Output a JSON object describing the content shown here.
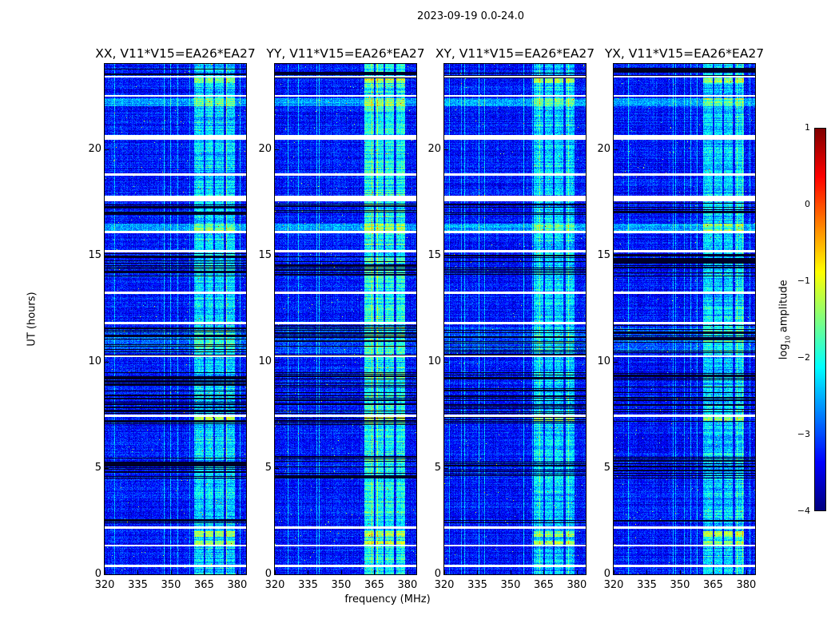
{
  "suptitle": "2023-09-19 0.0-24.0",
  "chart_data": {
    "type": "heatmap",
    "xlabel": "frequency (MHz)",
    "ylabel": "UT (hours)",
    "xlim": [
      320,
      384
    ],
    "ylim": [
      0,
      24
    ],
    "xticks": [
      "320",
      "335",
      "350",
      "365",
      "380"
    ],
    "xtick_values": [
      320,
      335,
      350,
      365,
      380
    ],
    "yticks": [
      "0",
      "5",
      "10",
      "15",
      "20"
    ],
    "ytick_values": [
      0,
      5,
      10,
      15,
      20
    ],
    "panels": [
      {
        "title": "XX, V11*V15=EA26*EA27",
        "band_boost": 1.1
      },
      {
        "title": "YY, V11*V15=EA26*EA27",
        "band_boost": 1.35
      },
      {
        "title": "XY, V11*V15=EA26*EA27",
        "band_boost": 1.05
      },
      {
        "title": "YX, V11*V15=EA26*EA27",
        "band_boost": 1.1
      }
    ],
    "background_log_amplitude": -3.3,
    "bright_bands_mhz": [
      [
        360.5,
        365
      ],
      [
        365.5,
        369
      ],
      [
        370,
        374
      ],
      [
        375,
        379
      ]
    ],
    "flagged_hours_white": [
      [
        23.35,
        23.45
      ],
      [
        22.45,
        22.55
      ],
      [
        20.45,
        20.65
      ],
      [
        18.75,
        18.85
      ],
      [
        17.55,
        17.8
      ],
      [
        16.05,
        16.15
      ],
      [
        15.15,
        15.25
      ],
      [
        13.2,
        13.3
      ],
      [
        11.75,
        11.85
      ],
      [
        10.2,
        10.3
      ],
      [
        7.4,
        7.5
      ],
      [
        2.15,
        2.25
      ],
      [
        1.3,
        1.4
      ],
      [
        0.35,
        0.45
      ]
    ],
    "dropout_hours_black": [
      [
        23.3,
        23.8
      ],
      [
        16.9,
        17.45
      ],
      [
        14.0,
        15.1
      ],
      [
        10.3,
        11.7
      ],
      [
        7.0,
        9.5
      ],
      [
        4.5,
        5.6
      ],
      [
        2.4,
        2.6
      ]
    ],
    "strong_hours": [
      23.2,
      7.3,
      1.9,
      1.45
    ],
    "colorbar": {
      "label": "log10 amplitude",
      "range": [
        -4,
        1
      ],
      "ticks": [
        "1",
        "0",
        "−1",
        "−2",
        "−3",
        "−4"
      ],
      "tick_values": [
        1,
        0,
        -1,
        -2,
        -3,
        -4
      ],
      "colormap": "jet"
    }
  }
}
